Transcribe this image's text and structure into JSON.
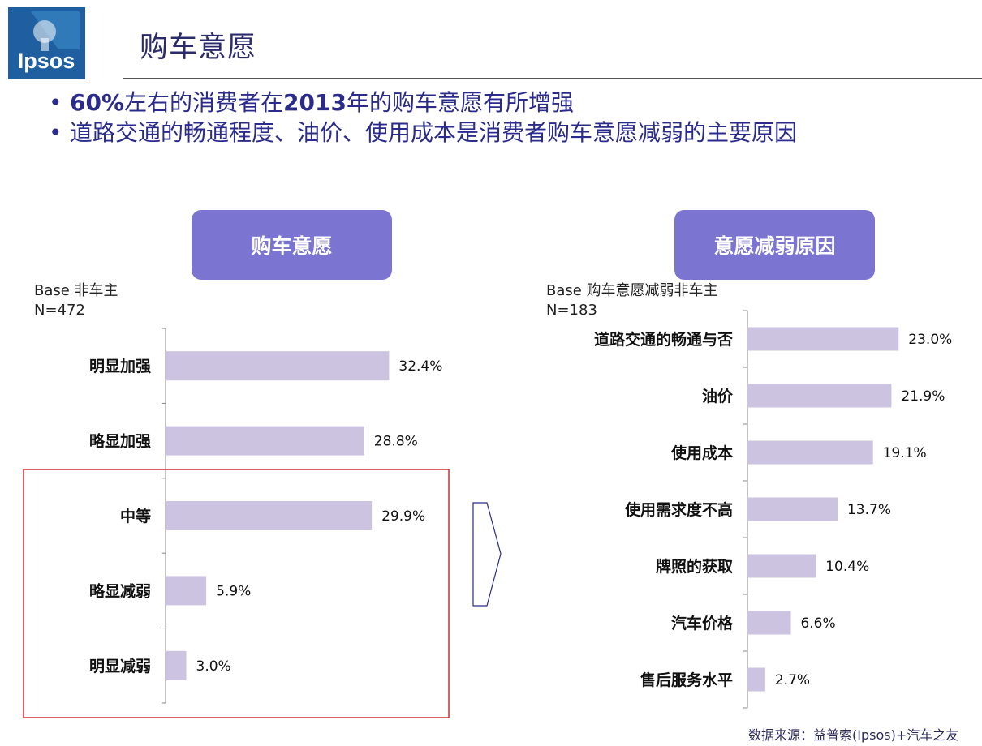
{
  "header": {
    "logo_text": "Ipsos",
    "title": "购车意愿"
  },
  "bullets": [
    {
      "parts": [
        {
          "t": "60%",
          "b": true
        },
        {
          "t": "左右的消费者在",
          "b": false
        },
        {
          "t": "2013",
          "b": true
        },
        {
          "t": "年的购车意愿有所增强",
          "b": false
        }
      ]
    },
    {
      "parts": [
        {
          "t": "道路交通的畅通程度、油价、使用成本是消费者购车意愿减弱的主要原因",
          "b": false
        }
      ]
    }
  ],
  "left_panel": {
    "heading": "购车意愿",
    "base_line1": "Base 非车主",
    "base_line2": "N=472"
  },
  "right_panel": {
    "heading": "意愿减弱原因",
    "base_line1": "Base 购车意愿减弱非车主",
    "base_line2": "N=183"
  },
  "footnote": "数据来源：益普索(Ipsos)+汽车之友",
  "colors": {
    "bar": "#cbc3df",
    "pill": "#7b74d0",
    "highlight_box": "#d22b2b",
    "title": "#2b2b6b",
    "bullet_text": "#2b2b8b"
  },
  "chart_data": [
    {
      "type": "bar",
      "orientation": "horizontal",
      "title": "购车意愿",
      "categories": [
        "明显加强",
        "略显加强",
        "中等",
        "略显减弱",
        "明显减弱"
      ],
      "values": [
        32.4,
        28.8,
        29.9,
        5.9,
        3.0
      ],
      "value_labels": [
        "32.4%",
        "28.8%",
        "29.9%",
        "5.9%",
        "3.0%"
      ],
      "highlighted": [
        "中等",
        "略显减弱",
        "明显减弱"
      ]
    },
    {
      "type": "bar",
      "orientation": "horizontal",
      "title": "意愿减弱原因",
      "categories": [
        "道路交通的畅通与否",
        "油价",
        "使用成本",
        "使用需求度不高",
        "牌照的获取",
        "汽车价格",
        "售后服务水平"
      ],
      "values": [
        23.0,
        21.9,
        19.1,
        13.7,
        10.4,
        6.6,
        2.7
      ],
      "value_labels": [
        "23.0%",
        "21.9%",
        "19.1%",
        "13.7%",
        "10.4%",
        "6.6%",
        "2.7%"
      ]
    }
  ]
}
